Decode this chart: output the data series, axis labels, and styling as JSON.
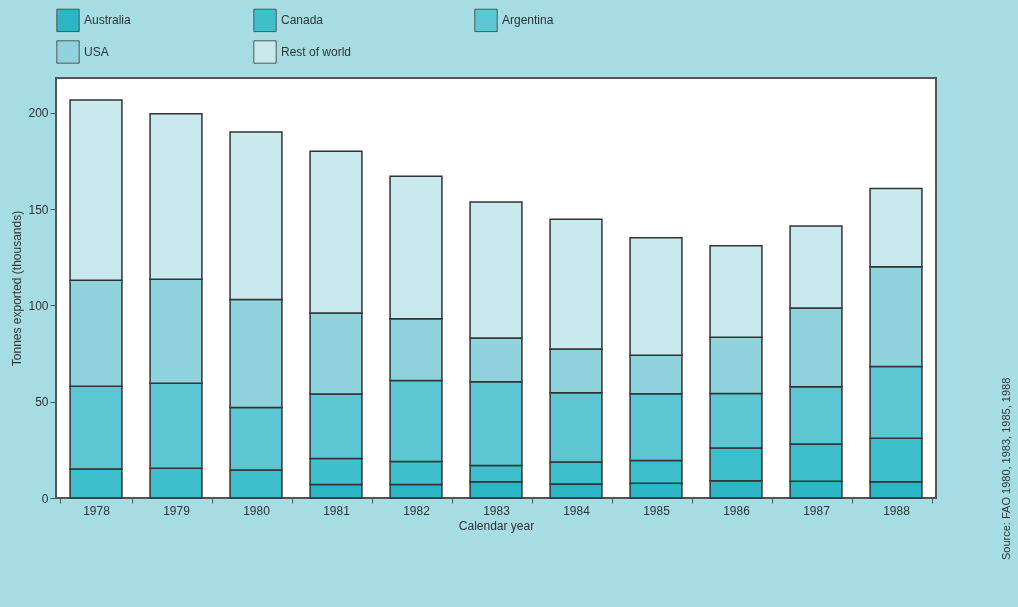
{
  "chart_data": {
    "type": "bar",
    "stacked": true,
    "xlabel": "Calendar year",
    "ylabel": "Tonnes exported (thousands)",
    "categories": [
      "1978",
      "1979",
      "1980",
      "1981",
      "1982",
      "1983",
      "1984",
      "1985",
      "1986",
      "1987",
      "1988"
    ],
    "series": [
      {
        "name": "Australia",
        "color": "#2bb5c5",
        "values": [
          null,
          null,
          null,
          7,
          7,
          8.4,
          7.3,
          7.6,
          9,
          8.7,
          8.4
        ]
      },
      {
        "name": "Canada",
        "color": "#3dbfcc",
        "values": [
          15,
          15.5,
          14.5,
          13.5,
          12,
          8.5,
          11.4,
          11.9,
          16.9,
          19.3,
          22.6
        ]
      },
      {
        "name": "Argentina",
        "color": "#5cc7d2",
        "values": [
          43,
          44,
          32.5,
          33.5,
          42,
          43.5,
          35.9,
          34.6,
          28.3,
          29.7,
          37.2
        ]
      },
      {
        "name": "USA",
        "color": "#8fd3dc",
        "values": [
          55,
          54,
          56,
          42,
          32,
          22.6,
          22.8,
          20,
          29.3,
          40.9,
          51.8
        ]
      },
      {
        "name": "Rest of world",
        "color": "#c8eaef",
        "values": [
          93.6,
          86,
          87,
          84,
          74,
          70.7,
          67.3,
          61,
          47.4,
          42.6,
          40.7
        ]
      }
    ],
    "ylim": [
      0,
      218
    ],
    "yticks": [
      0,
      50,
      100,
      150,
      200
    ],
    "grid": false,
    "legend": "top",
    "annotations": [
      "Source: FAO 1980, 1983, 1985, 1988"
    ]
  }
}
